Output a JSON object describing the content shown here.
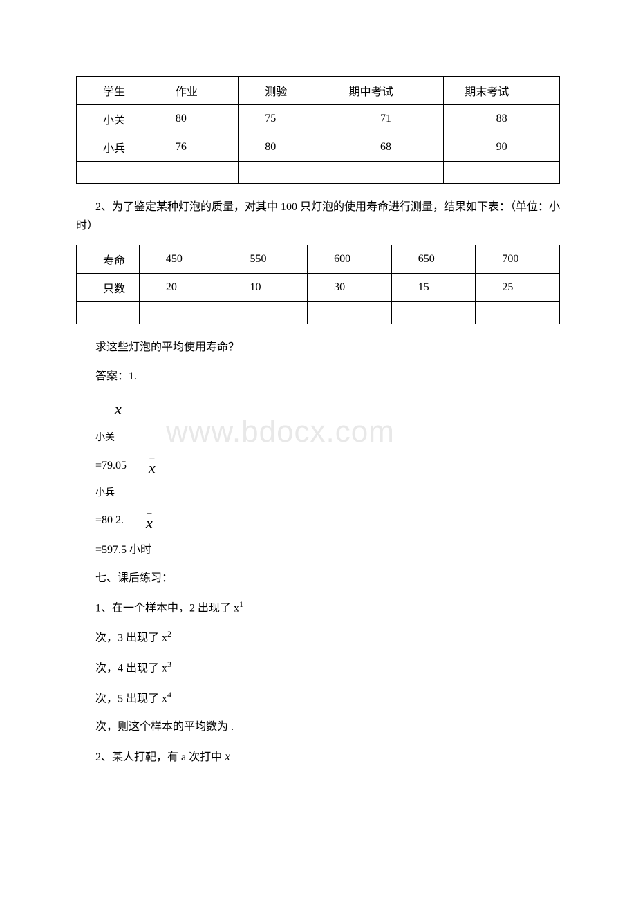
{
  "watermark": "www.bdocx.com",
  "table1": {
    "headers": [
      "学生",
      "作业",
      "测验",
      "期中考试",
      "期末考试"
    ],
    "rows": [
      [
        "小关",
        "80",
        "75",
        "71",
        "88"
      ],
      [
        "小兵",
        "76",
        "80",
        "68",
        "90"
      ],
      [
        "",
        "",
        "",
        "",
        ""
      ]
    ]
  },
  "problem2_text": "2、为了鉴定某种灯泡的质量，对其中 100 只灯泡的使用寿命进行测量，结果如下表：（单位：小时）",
  "table2": {
    "headers": [
      "寿命",
      "450",
      "550",
      "600",
      "650",
      "700"
    ],
    "rows": [
      [
        "只数",
        "20",
        "10",
        "30",
        "15",
        "25"
      ],
      [
        "",
        "",
        "",
        "",
        "",
        ""
      ]
    ]
  },
  "question2": "求这些灯泡的平均使用寿命？",
  "answer_label": "答案：1.",
  "xbar_symbol": "x",
  "xiaoguan": "小关",
  "val1": "=79.05",
  "xiaobing": "小兵",
  "val2_prefix": " =80 2.",
  "val2_result": "=597.5 小时",
  "section7": "七、课后练习：",
  "ex1_text": "1、在一个样本中，2 出现了 x",
  "ex1_sup1": "1",
  "ex1_line2": "次，3 出现了 x",
  "ex1_sup2": "2",
  "ex1_line3": "次，4 出现了 x",
  "ex1_sup3": "3",
  "ex1_line4": "次，5 出现了 x",
  "ex1_sup4": "4",
  "ex1_end": "次，则这个样本的平均数为 .",
  "ex2_text": "2、某人打靶，有 a 次打中"
}
